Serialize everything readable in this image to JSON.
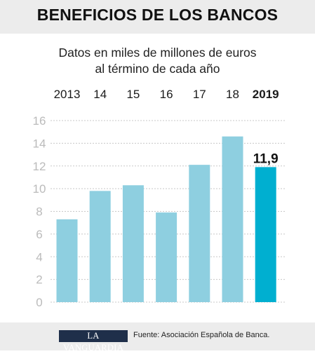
{
  "header": {
    "title": "BENEFICIOS DE LOS BANCOS"
  },
  "subtitle": {
    "line1": "Datos en miles de millones de euros",
    "line2": "al término de cada año"
  },
  "chart_data": {
    "type": "bar",
    "categories": [
      "2013",
      "14",
      "15",
      "16",
      "17",
      "18",
      "2019"
    ],
    "values": [
      7.3,
      9.8,
      10.3,
      7.9,
      12.1,
      14.6,
      11.9
    ],
    "ylim": [
      0,
      16
    ],
    "yticks": [
      0,
      2,
      4,
      6,
      8,
      10,
      12,
      14,
      16
    ],
    "grid": true,
    "data_labels": [
      {
        "category": "2019",
        "label": "11,9"
      }
    ],
    "colors": {
      "bar": "#8ecfe0",
      "highlight": "#00afd0",
      "grid": "#c8c8c8",
      "tick": "#bbbbbb"
    },
    "highlight_index": 6
  },
  "footer": {
    "logo_text": "LA VANGUARDIA",
    "source": "Fuente: Asociación Española de Banca."
  }
}
